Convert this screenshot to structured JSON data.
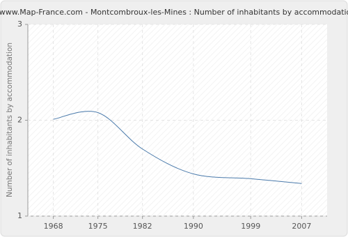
{
  "chart_data": {
    "type": "line",
    "title": "www.Map-France.com - Montcombroux-les-Mines : Number of inhabitants by accommodation",
    "y_label": "Number of inhabitants by accommodation",
    "x": [
      1968,
      1975,
      1982,
      1990,
      1999,
      2007
    ],
    "series": [
      {
        "name": "Number of inhabitants by accommodation",
        "color": "#4a7aab",
        "values": [
          2.01,
          2.08,
          1.7,
          1.44,
          1.39,
          1.34
        ]
      }
    ],
    "xlim": [
      1964,
      2011
    ],
    "xticks": [
      1968,
      1975,
      1982,
      1990,
      1999,
      2007
    ],
    "ylim": [
      1,
      3
    ],
    "yticks": [
      1,
      2,
      3
    ],
    "grid": true
  }
}
